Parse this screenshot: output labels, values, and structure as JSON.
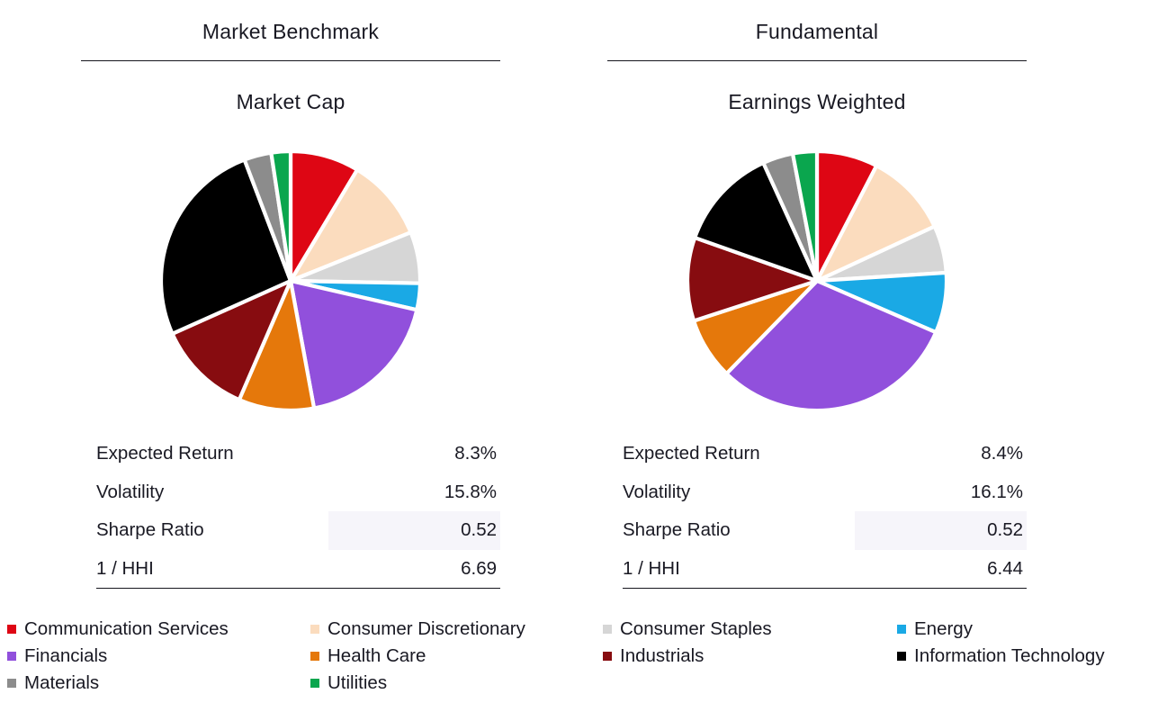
{
  "page": {
    "background": "#FFFFFF",
    "text_color": "#191923",
    "highlight_color": "#F6F5FA",
    "rule_color": "#16161E"
  },
  "panels": [
    {
      "title": "Market Benchmark",
      "subtitle": "Market Cap",
      "stats": [
        {
          "label": "Expected Return",
          "value": "8.3%",
          "highlight": false
        },
        {
          "label": "Volatility",
          "value": "15.8%",
          "highlight": false
        },
        {
          "label": "Sharpe Ratio",
          "value": "0.52",
          "highlight": true
        },
        {
          "label": "1 / HHI",
          "value": "6.69",
          "highlight": false
        }
      ]
    },
    {
      "title": "Fundamental",
      "subtitle": "Earnings Weighted",
      "stats": [
        {
          "label": "Expected Return",
          "value": "8.4%",
          "highlight": false
        },
        {
          "label": "Volatility",
          "value": "16.1%",
          "highlight": false
        },
        {
          "label": "Sharpe Ratio",
          "value": "0.52",
          "highlight": true
        },
        {
          "label": "1 / HHI",
          "value": "6.44",
          "highlight": false
        }
      ]
    }
  ],
  "legend": {
    "items": [
      {
        "label": "Communication Services",
        "color": "#DE0614"
      },
      {
        "label": "Consumer Discretionary",
        "color": "#FBDCBE"
      },
      {
        "label": "Consumer Staples",
        "color": "#D6D6D6"
      },
      {
        "label": "Energy",
        "color": "#1AA9E5"
      },
      {
        "label": "Financials",
        "color": "#9150DC"
      },
      {
        "label": "Health Care",
        "color": "#E5780B"
      },
      {
        "label": "Industrials",
        "color": "#870C10"
      },
      {
        "label": "Information Technology",
        "color": "#000000"
      },
      {
        "label": "Materials",
        "color": "#8C8C8C"
      },
      {
        "label": "Utilities",
        "color": "#0AA64E"
      }
    ]
  },
  "chart_data": [
    {
      "type": "pie",
      "title": "Market Cap",
      "column_header": "Market Benchmark",
      "labels": [
        "Communication Services",
        "Consumer Discretionary",
        "Consumer Staples",
        "Energy",
        "Financials",
        "Health Care",
        "Industrials",
        "Information Technology",
        "Materials",
        "Utilities"
      ],
      "values": [
        8.6,
        10.3,
        6.4,
        3.3,
        18.5,
        9.4,
        11.8,
        25.9,
        3.4,
        2.4
      ],
      "unit": "percent",
      "colors": [
        "#DE0614",
        "#FBDCBE",
        "#D6D6D6",
        "#1AA9E5",
        "#9150DC",
        "#E5780B",
        "#870C10",
        "#000000",
        "#8C8C8C",
        "#0AA64E"
      ],
      "start_angle_deg": 0,
      "direction": "clockwise",
      "slice_gap_color": "#FFFFFF",
      "legend_position": "bottom-shared",
      "stats": {
        "Expected Return": "8.3%",
        "Volatility": "15.8%",
        "Sharpe Ratio": "0.52",
        "1 / HHI": "6.69"
      }
    },
    {
      "type": "pie",
      "title": "Earnings Weighted",
      "column_header": "Fundamental",
      "labels": [
        "Communication Services",
        "Consumer Discretionary",
        "Consumer Staples",
        "Energy",
        "Financials",
        "Health Care",
        "Industrials",
        "Information Technology",
        "Materials",
        "Utilities"
      ],
      "values": [
        7.6,
        10.5,
        5.9,
        7.5,
        30.8,
        7.7,
        10.4,
        12.8,
        3.8,
        3.0
      ],
      "unit": "percent",
      "colors": [
        "#DE0614",
        "#FBDCBE",
        "#D6D6D6",
        "#1AA9E5",
        "#9150DC",
        "#E5780B",
        "#870C10",
        "#000000",
        "#8C8C8C",
        "#0AA64E"
      ],
      "start_angle_deg": 0,
      "direction": "clockwise",
      "slice_gap_color": "#FFFFFF",
      "legend_position": "bottom-shared",
      "stats": {
        "Expected Return": "8.4%",
        "Volatility": "16.1%",
        "Sharpe Ratio": "0.52",
        "1 / HHI": "6.44"
      }
    }
  ]
}
